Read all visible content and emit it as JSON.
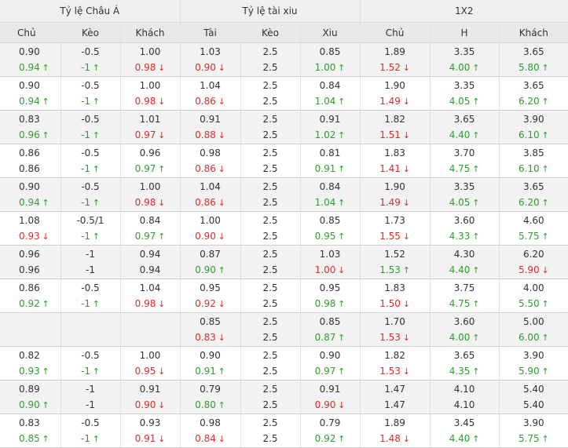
{
  "groups": [
    {
      "label": "Tỷ lệ Châu Á",
      "span": 3
    },
    {
      "label": "Tỷ lệ tài xiu",
      "span": 3
    },
    {
      "label": "1X2",
      "span": 3
    }
  ],
  "columns": [
    "Chủ",
    "Kèo",
    "Khách",
    "Tài",
    "Kèo",
    "Xiu",
    "Chủ",
    "H",
    "Khách"
  ],
  "colors": {
    "up": "#2e9e2e",
    "down": "#e02a2a"
  },
  "rows": [
    [
      [
        "0.90",
        "0.94",
        "up"
      ],
      [
        "-0.5",
        "-1",
        "up"
      ],
      [
        "1.00",
        "0.98",
        "down"
      ],
      [
        "1.03",
        "0.90",
        "down"
      ],
      [
        "2.5",
        "2.5",
        ""
      ],
      [
        "0.85",
        "1.00",
        "up"
      ],
      [
        "1.89",
        "1.52",
        "down"
      ],
      [
        "3.35",
        "4.00",
        "up"
      ],
      [
        "3.65",
        "5.80",
        "up"
      ]
    ],
    [
      [
        "0.90",
        "0.94",
        "up"
      ],
      [
        "-0.5",
        "-1",
        "up"
      ],
      [
        "1.00",
        "0.98",
        "down"
      ],
      [
        "1.04",
        "0.86",
        "down"
      ],
      [
        "2.5",
        "2.5",
        ""
      ],
      [
        "0.84",
        "1.04",
        "up"
      ],
      [
        "1.90",
        "1.49",
        "down"
      ],
      [
        "3.35",
        "4.05",
        "up"
      ],
      [
        "3.65",
        "6.20",
        "up"
      ]
    ],
    [
      [
        "0.83",
        "0.96",
        "up"
      ],
      [
        "-0.5",
        "-1",
        "up"
      ],
      [
        "1.01",
        "0.97",
        "down"
      ],
      [
        "0.91",
        "0.88",
        "down"
      ],
      [
        "2.5",
        "2.5",
        ""
      ],
      [
        "0.91",
        "1.02",
        "up"
      ],
      [
        "1.82",
        "1.51",
        "down"
      ],
      [
        "3.65",
        "4.40",
        "up"
      ],
      [
        "3.90",
        "6.10",
        "up"
      ]
    ],
    [
      [
        "0.86",
        "0.86",
        ""
      ],
      [
        "-0.5",
        "-1",
        "up"
      ],
      [
        "0.96",
        "0.97",
        "up"
      ],
      [
        "0.98",
        "0.86",
        "down"
      ],
      [
        "2.5",
        "2.5",
        ""
      ],
      [
        "0.81",
        "0.91",
        "up"
      ],
      [
        "1.83",
        "1.41",
        "down"
      ],
      [
        "3.70",
        "4.75",
        "up"
      ],
      [
        "3.85",
        "6.10",
        "up"
      ]
    ],
    [
      [
        "0.90",
        "0.94",
        "up"
      ],
      [
        "-0.5",
        "-1",
        "up"
      ],
      [
        "1.00",
        "0.98",
        "down"
      ],
      [
        "1.04",
        "0.86",
        "down"
      ],
      [
        "2.5",
        "2.5",
        ""
      ],
      [
        "0.84",
        "1.04",
        "up"
      ],
      [
        "1.90",
        "1.49",
        "down"
      ],
      [
        "3.35",
        "4.05",
        "up"
      ],
      [
        "3.65",
        "6.20",
        "up"
      ]
    ],
    [
      [
        "1.08",
        "0.93",
        "down"
      ],
      [
        "-0.5/1",
        "-1",
        "up"
      ],
      [
        "0.84",
        "0.97",
        "up"
      ],
      [
        "1.00",
        "0.90",
        "down"
      ],
      [
        "2.5",
        "2.5",
        ""
      ],
      [
        "0.85",
        "0.95",
        "up"
      ],
      [
        "1.73",
        "1.55",
        "down"
      ],
      [
        "3.60",
        "4.33",
        "up"
      ],
      [
        "4.60",
        "5.75",
        "up"
      ]
    ],
    [
      [
        "0.96",
        "0.96",
        ""
      ],
      [
        "-1",
        "-1",
        ""
      ],
      [
        "0.94",
        "0.94",
        ""
      ],
      [
        "0.87",
        "0.90",
        "up"
      ],
      [
        "2.5",
        "2.5",
        ""
      ],
      [
        "1.03",
        "1.00",
        "down"
      ],
      [
        "1.52",
        "1.53",
        "up"
      ],
      [
        "4.30",
        "4.40",
        "up"
      ],
      [
        "6.20",
        "5.90",
        "down"
      ]
    ],
    [
      [
        "0.86",
        "0.92",
        "up"
      ],
      [
        "-0.5",
        "-1",
        "up"
      ],
      [
        "1.04",
        "0.98",
        "down"
      ],
      [
        "0.95",
        "0.92",
        "down"
      ],
      [
        "2.5",
        "2.5",
        ""
      ],
      [
        "0.95",
        "0.98",
        "up"
      ],
      [
        "1.83",
        "1.50",
        "down"
      ],
      [
        "3.75",
        "4.75",
        "up"
      ],
      [
        "4.00",
        "5.50",
        "up"
      ]
    ],
    [
      [
        "",
        "",
        ""
      ],
      [
        "",
        "",
        ""
      ],
      [
        "",
        "",
        ""
      ],
      [
        "0.85",
        "0.83",
        "down"
      ],
      [
        "2.5",
        "2.5",
        ""
      ],
      [
        "0.85",
        "0.87",
        "up"
      ],
      [
        "1.70",
        "1.53",
        "down"
      ],
      [
        "3.60",
        "4.00",
        "up"
      ],
      [
        "5.00",
        "6.00",
        "up"
      ]
    ],
    [
      [
        "0.82",
        "0.93",
        "up"
      ],
      [
        "-0.5",
        "-1",
        "up"
      ],
      [
        "1.00",
        "0.95",
        "down"
      ],
      [
        "0.90",
        "0.91",
        "up"
      ],
      [
        "2.5",
        "2.5",
        ""
      ],
      [
        "0.90",
        "0.97",
        "up"
      ],
      [
        "1.82",
        "1.53",
        "down"
      ],
      [
        "3.65",
        "4.35",
        "up"
      ],
      [
        "3.90",
        "5.90",
        "up"
      ]
    ],
    [
      [
        "0.89",
        "0.90",
        "up"
      ],
      [
        "-1",
        "-1",
        ""
      ],
      [
        "0.91",
        "0.90",
        "down"
      ],
      [
        "0.79",
        "0.80",
        "up"
      ],
      [
        "2.5",
        "2.5",
        ""
      ],
      [
        "0.91",
        "0.90",
        "down"
      ],
      [
        "1.47",
        "1.47",
        ""
      ],
      [
        "4.10",
        "4.10",
        ""
      ],
      [
        "5.40",
        "5.40",
        ""
      ]
    ],
    [
      [
        "0.83",
        "0.85",
        "up"
      ],
      [
        "-0.5",
        "-1",
        "up"
      ],
      [
        "0.93",
        "0.91",
        "down"
      ],
      [
        "0.98",
        "0.84",
        "down"
      ],
      [
        "2.5",
        "2.5",
        ""
      ],
      [
        "0.79",
        "0.92",
        "up"
      ],
      [
        "1.89",
        "1.48",
        "down"
      ],
      [
        "3.45",
        "4.40",
        "up"
      ],
      [
        "3.90",
        "5.75",
        "up"
      ]
    ]
  ]
}
